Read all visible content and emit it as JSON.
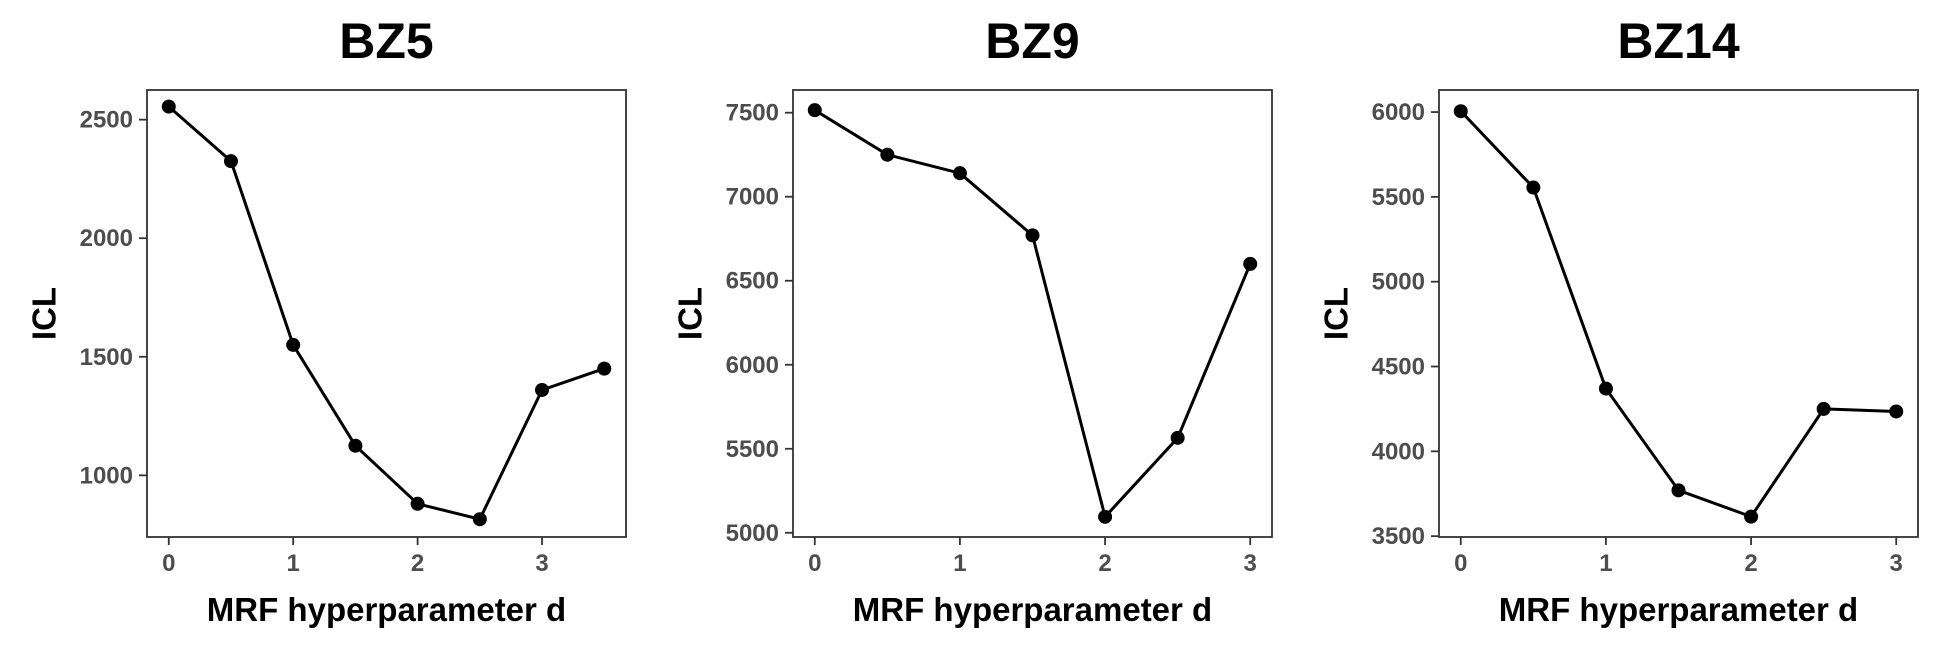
{
  "chart_data": [
    {
      "type": "line",
      "title": "BZ5",
      "xlabel": "MRF hyperparameter d",
      "ylabel": "ICL",
      "x": [
        0,
        0.5,
        1,
        1.5,
        2,
        2.5,
        3,
        3.5
      ],
      "values": [
        2555,
        2325,
        1550,
        1125,
        880,
        815,
        1360,
        1450
      ],
      "xlim": [
        -0.175,
        3.675
      ],
      "ylim": [
        740,
        2625
      ],
      "xticks": [
        0,
        1,
        2,
        3
      ],
      "xtick_labels": [
        "0",
        "1",
        "2",
        "3"
      ],
      "yticks": [
        1000,
        1500,
        2000,
        2500
      ],
      "ytick_labels": [
        "1000",
        "1500",
        "2000",
        "2500"
      ],
      "grid": false,
      "legend": "none"
    },
    {
      "type": "line",
      "title": "BZ9",
      "xlabel": "MRF hyperparameter d",
      "ylabel": "ICL",
      "x": [
        0,
        0.5,
        1,
        1.5,
        2,
        2.5,
        3
      ],
      "values": [
        7515,
        7250,
        7140,
        6770,
        5095,
        5565,
        6600
      ],
      "xlim": [
        -0.15,
        3.15
      ],
      "ylim": [
        4975,
        7635
      ],
      "xticks": [
        0,
        1,
        2,
        3
      ],
      "xtick_labels": [
        "0",
        "1",
        "2",
        "3"
      ],
      "yticks": [
        5000,
        5500,
        6000,
        6500,
        7000,
        7500
      ],
      "ytick_labels": [
        "5000",
        "5500",
        "6000",
        "6500",
        "7000",
        "7500"
      ],
      "grid": false,
      "legend": "none"
    },
    {
      "type": "line",
      "title": "BZ14",
      "xlabel": "MRF hyperparameter d",
      "ylabel": "ICL",
      "x": [
        0,
        0.5,
        1,
        1.5,
        2,
        2.5,
        3
      ],
      "values": [
        6005,
        5555,
        4370,
        3770,
        3615,
        4250,
        4235
      ],
      "xlim": [
        -0.15,
        3.15
      ],
      "ylim": [
        3495,
        6130
      ],
      "xticks": [
        0,
        1,
        2,
        3
      ],
      "xtick_labels": [
        "0",
        "1",
        "2",
        "3"
      ],
      "yticks": [
        3500,
        4000,
        4500,
        5000,
        5500,
        6000
      ],
      "ytick_labels": [
        "3500",
        "4000",
        "4500",
        "5000",
        "5500",
        "6000"
      ],
      "grid": false,
      "legend": "none"
    }
  ]
}
